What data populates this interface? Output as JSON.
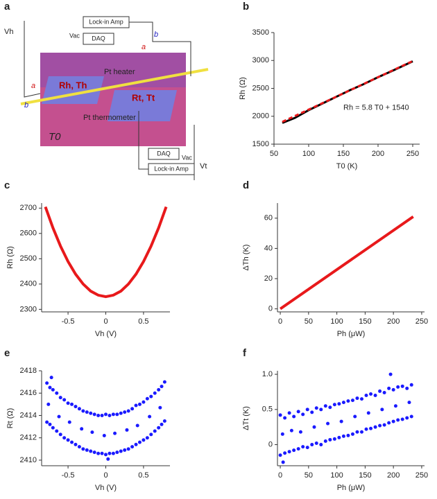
{
  "schematic": {
    "panel": "a",
    "vh": "Vh",
    "vt": "Vt",
    "lockin_top": "Lock-in Amp",
    "daq_top": "DAQ",
    "vac_top": "Vac",
    "lockin_bottom": "Lock-in Amp",
    "daq_bottom": "DAQ",
    "vac_bottom": "Vac",
    "a_left": "a",
    "b_left": "b",
    "a_right": "a",
    "b_right": "b",
    "heater": "Pt heater",
    "thermometer": "Pt thermometer",
    "rh_th": "Rh, Th",
    "rt_tt": "Rt, Tt",
    "t0": "T0"
  },
  "chart_data": [
    {
      "type": "line",
      "panel": "b",
      "xlabel": "T0 (K)",
      "ylabel": "Rh (Ω)",
      "annotation": "Rh = 5.8 T0 + 1540",
      "x": [
        62,
        80,
        100,
        120,
        140,
        160,
        180,
        200,
        220,
        250
      ],
      "series": [
        {
          "color": "#000000",
          "style": "solid",
          "values": [
            1880,
            1970,
            2110,
            2230,
            2350,
            2470,
            2580,
            2700,
            2810,
            2985
          ]
        },
        {
          "color": "#e8191b",
          "style": "dashed",
          "values": [
            1900,
            2004,
            2120,
            2236,
            2352,
            2468,
            2584,
            2700,
            2816,
            2990
          ]
        }
      ],
      "xlim": [
        50,
        260
      ],
      "xticks": [
        50,
        100,
        150,
        200,
        250
      ],
      "ylim": [
        1500,
        3500
      ],
      "yticks": [
        1500,
        2000,
        2500,
        3000,
        3500
      ]
    },
    {
      "type": "line",
      "panel": "c",
      "xlabel": "Vh (V)",
      "ylabel": "Rh (Ω)",
      "x": [
        -0.8,
        -0.7,
        -0.6,
        -0.5,
        -0.4,
        -0.3,
        -0.2,
        -0.1,
        0,
        0.1,
        0.2,
        0.3,
        0.4,
        0.5,
        0.6,
        0.7,
        0.8
      ],
      "series": [
        {
          "color": "#e8191b",
          "style": "thick",
          "values": [
            2705,
            2622,
            2550,
            2489,
            2439,
            2400,
            2372,
            2356,
            2350,
            2356,
            2372,
            2400,
            2439,
            2489,
            2550,
            2622,
            2705
          ]
        }
      ],
      "xlim": [
        -0.85,
        0.85
      ],
      "xticks": [
        -0.5,
        0,
        0.5
      ],
      "ylim": [
        2290,
        2720
      ],
      "yticks": [
        2300,
        2400,
        2500,
        2600,
        2700
      ]
    },
    {
      "type": "line",
      "panel": "d",
      "xlabel": "Ph (μW)",
      "ylabel": "ΔTh (K)",
      "x": [
        0,
        235
      ],
      "series": [
        {
          "color": "#e8191b",
          "style": "thick",
          "values": [
            0,
            61
          ]
        }
      ],
      "xlim": [
        -5,
        255
      ],
      "xticks": [
        0,
        50,
        100,
        150,
        200,
        250
      ],
      "ylim": [
        -2,
        70
      ],
      "yticks": [
        0,
        20,
        40,
        60
      ]
    },
    {
      "type": "scatter",
      "panel": "e",
      "xlabel": "Vh (V)",
      "ylabel": "Rt (Ω)",
      "x": [
        -0.78,
        -0.74,
        -0.7,
        -0.65,
        -0.6,
        -0.55,
        -0.5,
        -0.45,
        -0.4,
        -0.35,
        -0.3,
        -0.25,
        -0.2,
        -0.15,
        -0.1,
        -0.05,
        0,
        0.05,
        0.1,
        0.15,
        0.2,
        0.25,
        0.3,
        0.35,
        0.4,
        0.45,
        0.5,
        0.55,
        0.6,
        0.65,
        0.7,
        0.74,
        0.78,
        -0.78,
        -0.74,
        -0.7,
        -0.65,
        -0.6,
        -0.55,
        -0.5,
        -0.45,
        -0.4,
        -0.35,
        -0.3,
        -0.25,
        -0.2,
        -0.15,
        -0.1,
        -0.05,
        0,
        0.05,
        0.1,
        0.15,
        0.2,
        0.25,
        0.3,
        0.35,
        0.4,
        0.45,
        0.5,
        0.55,
        0.6,
        0.65,
        0.7,
        0.74,
        0.78,
        -0.76,
        -0.62,
        -0.48,
        -0.32,
        -0.18,
        -0.02,
        0.12,
        0.28,
        0.42,
        0.58,
        0.72,
        -0.72,
        0.03
      ],
      "series": [
        {
          "color": "#1a1aff",
          "values": [
            2416.9,
            2416.5,
            2416.3,
            2416.0,
            2415.6,
            2415.4,
            2415.1,
            2415.0,
            2414.8,
            2414.6,
            2414.4,
            2414.3,
            2414.2,
            2414.1,
            2414.0,
            2414.0,
            2414.1,
            2414.0,
            2414.1,
            2414.1,
            2414.2,
            2414.3,
            2414.4,
            2414.6,
            2414.9,
            2415.0,
            2415.2,
            2415.5,
            2415.7,
            2416.0,
            2416.3,
            2416.6,
            2417.0,
            2413.4,
            2413.2,
            2412.9,
            2412.6,
            2412.3,
            2412.0,
            2411.8,
            2411.6,
            2411.4,
            2411.2,
            2411.0,
            2410.9,
            2410.8,
            2410.7,
            2410.6,
            2410.6,
            2410.5,
            2410.6,
            2410.6,
            2410.7,
            2410.8,
            2410.9,
            2411.0,
            2411.2,
            2411.4,
            2411.6,
            2411.8,
            2412.0,
            2412.3,
            2412.6,
            2412.9,
            2413.2,
            2413.5,
            2415.0,
            2413.9,
            2413.4,
            2412.8,
            2412.5,
            2412.2,
            2412.4,
            2412.7,
            2413.1,
            2413.9,
            2414.7,
            2417.4,
            2410.1
          ]
        }
      ],
      "xlim": [
        -0.85,
        0.85
      ],
      "xticks": [
        -0.5,
        0,
        0.5
      ],
      "ylim": [
        2409.5,
        2418
      ],
      "yticks": [
        2410,
        2412,
        2414,
        2416,
        2418
      ]
    },
    {
      "type": "scatter",
      "panel": "f",
      "xlabel": "Ph (μW)",
      "ylabel": "ΔTt (K)",
      "x": [
        0,
        8,
        16,
        24,
        32,
        40,
        48,
        56,
        64,
        72,
        80,
        88,
        96,
        104,
        112,
        120,
        128,
        136,
        144,
        152,
        160,
        168,
        176,
        184,
        192,
        200,
        208,
        216,
        224,
        232,
        0,
        8,
        16,
        24,
        32,
        40,
        48,
        56,
        64,
        72,
        80,
        88,
        96,
        104,
        112,
        120,
        128,
        136,
        144,
        152,
        160,
        168,
        176,
        184,
        192,
        200,
        208,
        216,
        224,
        232,
        4,
        20,
        36,
        60,
        84,
        108,
        132,
        156,
        180,
        204,
        228,
        195,
        5
      ],
      "series": [
        {
          "color": "#1a1aff",
          "values": [
            0.42,
            0.38,
            0.45,
            0.4,
            0.47,
            0.43,
            0.5,
            0.46,
            0.52,
            0.5,
            0.55,
            0.53,
            0.57,
            0.58,
            0.6,
            0.62,
            0.63,
            0.66,
            0.65,
            0.7,
            0.72,
            0.7,
            0.76,
            0.74,
            0.8,
            0.78,
            0.82,
            0.83,
            0.8,
            0.85,
            -0.15,
            -0.12,
            -0.1,
            -0.08,
            -0.06,
            -0.03,
            -0.04,
            0.0,
            0.02,
            0.0,
            0.05,
            0.07,
            0.08,
            0.1,
            0.12,
            0.13,
            0.15,
            0.18,
            0.18,
            0.22,
            0.23,
            0.25,
            0.27,
            0.28,
            0.31,
            0.33,
            0.35,
            0.36,
            0.38,
            0.4,
            0.15,
            0.2,
            0.18,
            0.25,
            0.3,
            0.33,
            0.4,
            0.45,
            0.5,
            0.55,
            0.6,
            1.0,
            -0.25
          ]
        }
      ],
      "xlim": [
        -5,
        255
      ],
      "xticks": [
        0,
        50,
        100,
        150,
        200,
        250
      ],
      "ylim": [
        -0.3,
        1.05
      ],
      "yticks": [
        0,
        0.5,
        {
          "value": 1,
          "label": "1.0"
        }
      ]
    }
  ]
}
